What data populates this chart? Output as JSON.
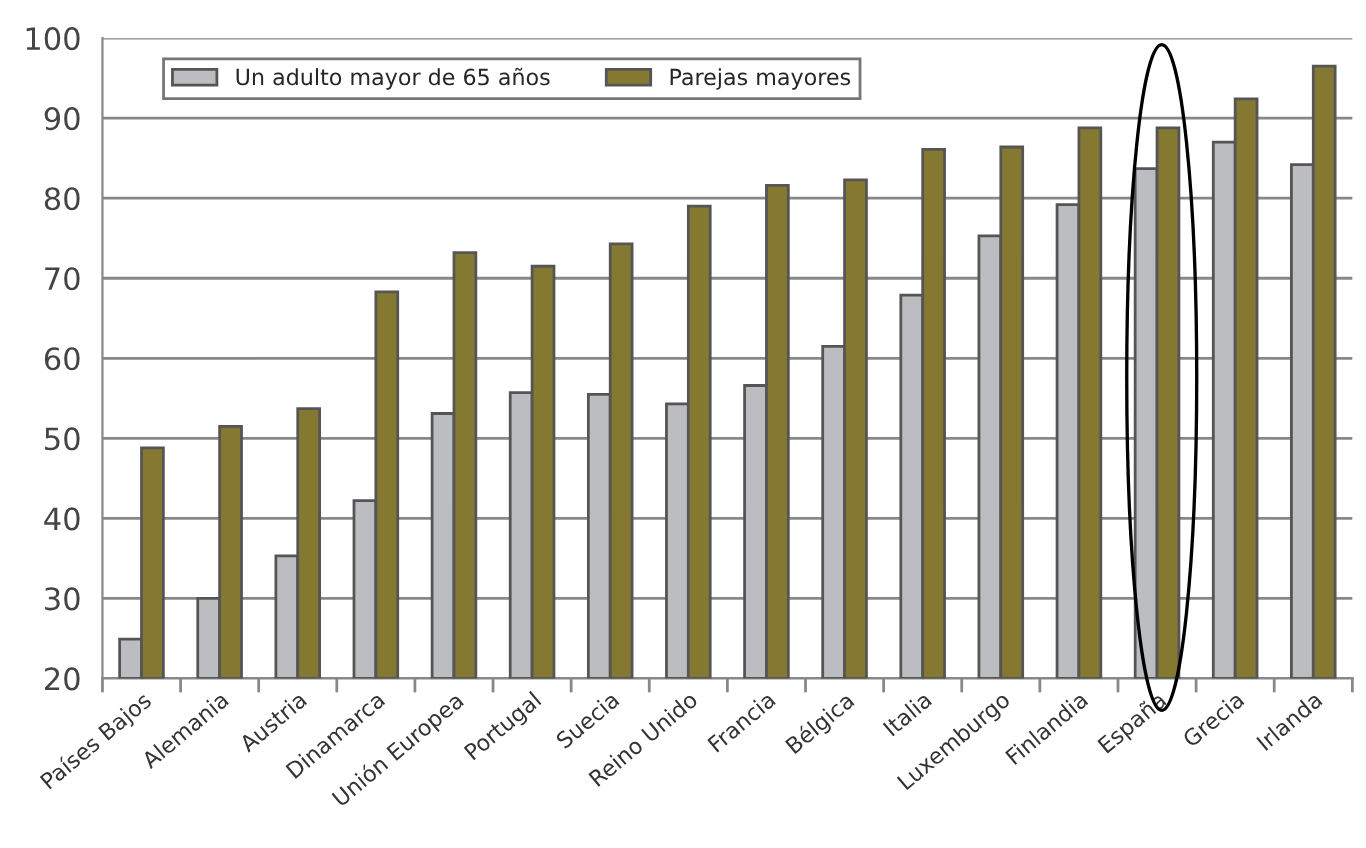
{
  "chart_data": {
    "type": "bar",
    "categories": [
      "Países Bajos",
      "Alemania",
      "Austria",
      "Dinamarca",
      "Unión Europea",
      "Portugal",
      "Suecia",
      "Reino Unido",
      "Francia",
      "Bélgica",
      "Italia",
      "Luxemburgo",
      "Finlandia",
      "España",
      "Grecia",
      "Irlanda"
    ],
    "series": [
      {
        "name": "Un adulto mayor de 65 años",
        "color": "#bcbdc1",
        "values": [
          24.9,
          30,
          35.3,
          42.2,
          53.1,
          55.7,
          55.5,
          54.3,
          56.6,
          61.5,
          67.9,
          75.3,
          79.2,
          83.7,
          87.0,
          84.2
        ]
      },
      {
        "name": "Parejas mayores",
        "color": "#857831",
        "values": [
          48.8,
          51.5,
          53.7,
          68.3,
          73.2,
          71.5,
          74.3,
          79.0,
          81.6,
          82.3,
          86.1,
          86.4,
          88.8,
          88.8,
          92.4,
          96.5
        ]
      }
    ],
    "ylim": [
      20,
      100
    ],
    "yticks": [
      20,
      30,
      40,
      50,
      60,
      70,
      80,
      90,
      100
    ],
    "grid": "y",
    "legend": "top left"
  }
}
